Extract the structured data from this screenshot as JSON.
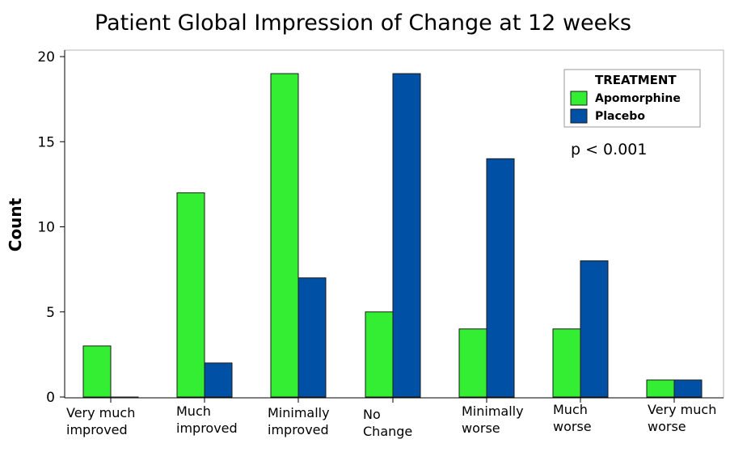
{
  "chart_data": {
    "type": "bar",
    "title": "Patient Global Impression of Change at 12 weeks",
    "ylabel": "Count",
    "xlabel": "",
    "ylim": [
      0,
      20
    ],
    "yticks": [
      0,
      5,
      10,
      15,
      20
    ],
    "categories": [
      [
        "Very much",
        "improved"
      ],
      [
        "Much",
        "improved"
      ],
      [
        "Minimally",
        "improved"
      ],
      [
        "No",
        "Change"
      ],
      [
        "Minimally",
        "worse"
      ],
      [
        "Much",
        "worse"
      ],
      [
        "Very much",
        "worse"
      ]
    ],
    "legend": {
      "title": "TREATMENT",
      "position": "top-right"
    },
    "series": [
      {
        "name": "Apomorphine",
        "color": "#33ee33",
        "values": [
          3,
          12,
          19,
          5,
          4,
          4,
          1
        ]
      },
      {
        "name": "Placebo",
        "color": "#0050a6",
        "values": [
          0,
          2,
          7,
          19,
          14,
          8,
          1
        ]
      }
    ],
    "annotation": "p < 0.001",
    "grid": false
  }
}
